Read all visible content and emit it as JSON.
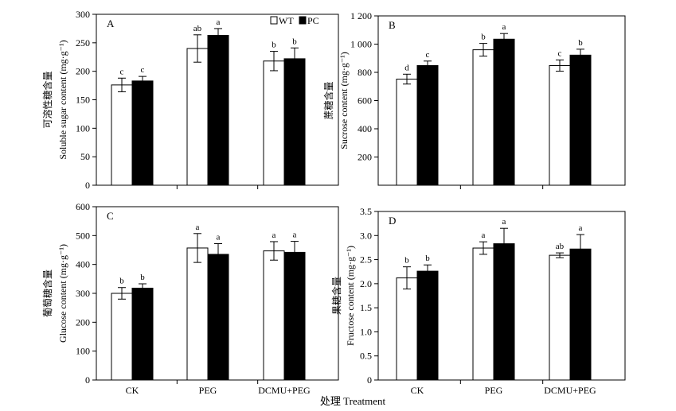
{
  "figure": {
    "xlabel": "处理 Treatment",
    "legend": {
      "position": "top-right",
      "items": [
        {
          "name": "WT",
          "color": "#ffffff"
        },
        {
          "name": "PC",
          "color": "#000000"
        }
      ]
    }
  },
  "chart_data": [
    {
      "type": "bar",
      "panel_label": "A",
      "categories": [
        "CK",
        "PEG",
        "DCMU+PEG"
      ],
      "series": [
        {
          "name": "WT",
          "values": [
            176,
            240,
            218
          ],
          "errors": [
            12,
            24,
            17
          ],
          "letters": [
            "c",
            "ab",
            "b"
          ]
        },
        {
          "name": "PC",
          "values": [
            183,
            263,
            222
          ],
          "errors": [
            8,
            12,
            19
          ],
          "letters": [
            "c",
            "a",
            "b"
          ]
        }
      ],
      "ylabel_cn": "可溶性糖含量",
      "ylabel": "Soluble sugar content (mg·g⁻¹)",
      "ylim": [
        0,
        300
      ],
      "yticks": [
        0,
        50,
        100,
        150,
        200,
        250,
        300
      ],
      "ytick_labels": [
        "0",
        "50",
        "100",
        "150",
        "200",
        "250",
        "300"
      ],
      "show_xticklabels": false,
      "grid": false
    },
    {
      "type": "bar",
      "panel_label": "B",
      "categories": [
        "CK",
        "PEG",
        "DCMU+PEG"
      ],
      "series": [
        {
          "name": "WT",
          "values": [
            752,
            960,
            848
          ],
          "errors": [
            35,
            45,
            40
          ],
          "letters": [
            "d",
            "b",
            "c"
          ]
        },
        {
          "name": "PC",
          "values": [
            848,
            1035,
            922
          ],
          "errors": [
            32,
            40,
            42
          ],
          "letters": [
            "c",
            "a",
            "b"
          ]
        }
      ],
      "ylabel_cn": "蔗糖含量",
      "ylabel": "Sucrose content (mg·g⁻¹)",
      "ylim": [
        0,
        1200
      ],
      "yticks": [
        200,
        400,
        600,
        800,
        1000,
        1200
      ],
      "ytick_labels": [
        "200",
        "400",
        "600",
        "800",
        "1 000",
        "1 200"
      ],
      "show_xticklabels": false,
      "grid": false
    },
    {
      "type": "bar",
      "panel_label": "C",
      "categories": [
        "CK",
        "PEG",
        "DCMU+PEG"
      ],
      "series": [
        {
          "name": "WT",
          "values": [
            300,
            457,
            447
          ],
          "errors": [
            20,
            50,
            32
          ],
          "letters": [
            "b",
            "a",
            "a"
          ]
        },
        {
          "name": "PC",
          "values": [
            318,
            435,
            442
          ],
          "errors": [
            15,
            37,
            38
          ],
          "letters": [
            "b",
            "a",
            "a"
          ]
        }
      ],
      "ylabel_cn": "葡萄糖含量",
      "ylabel": "Glucose content (mg·g⁻¹)",
      "ylim": [
        0,
        600
      ],
      "yticks": [
        0,
        100,
        200,
        300,
        400,
        500,
        600
      ],
      "ytick_labels": [
        "0",
        "100",
        "200",
        "300",
        "400",
        "500",
        "600"
      ],
      "show_xticklabels": true,
      "grid": false
    },
    {
      "type": "bar",
      "panel_label": "D",
      "categories": [
        "CK",
        "PEG",
        "DCMU+PEG"
      ],
      "series": [
        {
          "name": "WT",
          "values": [
            2.12,
            2.74,
            2.59
          ],
          "errors": [
            0.23,
            0.13,
            0.05
          ],
          "letters": [
            "b",
            "a",
            "ab"
          ]
        },
        {
          "name": "PC",
          "values": [
            2.26,
            2.83,
            2.72
          ],
          "errors": [
            0.13,
            0.32,
            0.3
          ],
          "letters": [
            "b",
            "a",
            "a"
          ]
        }
      ],
      "ylabel_cn": "果糖含量",
      "ylabel": "Fructose content (mg·g⁻¹)",
      "ylim": [
        0,
        3.5
      ],
      "yticks": [
        0,
        0.5,
        1.0,
        1.5,
        2.0,
        2.5,
        3.0,
        3.5
      ],
      "ytick_labels": [
        "0",
        "0.5",
        "1.0",
        "1.5",
        "2.0",
        "2.5",
        "3.0",
        "3.5"
      ],
      "show_xticklabels": true,
      "grid": false
    }
  ]
}
